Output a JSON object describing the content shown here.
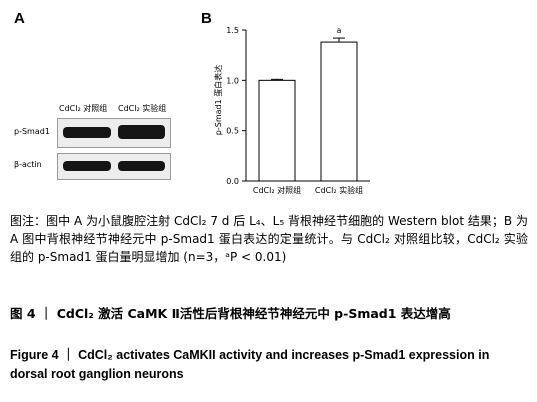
{
  "panelA": {
    "letter": "A",
    "lane_labels": [
      "CdCl₂ 对照组",
      "CdCl₂ 实验组"
    ],
    "row_labels": [
      "p-Smad1",
      "β-actin"
    ]
  },
  "panelB": {
    "letter": "B"
  },
  "chart_data": {
    "type": "bar",
    "categories": [
      "CdCl₂ 对照组",
      "CdCl₂ 实验组"
    ],
    "values": [
      1.0,
      1.38
    ],
    "errors": [
      0.01,
      0.04
    ],
    "annotations": [
      "",
      "a"
    ],
    "ylabel": "p-Smad1 蛋白表达",
    "ylim": [
      0,
      1.5
    ],
    "yticks": [
      "0.0",
      "0.5",
      "1.0",
      "1.5"
    ],
    "bar_color": "#ffffff",
    "grid": false
  },
  "caption": {
    "note": "图注：图中 A 为小鼠腹腔注射 CdCl₂ 7 d 后 L₄、L₅ 背根神经节细胞的 Western blot 结果；B 为 A 图中背根神经节神经元中 p-Smad1 蛋白表达的定量统计。与 CdCl₂ 对照组比较，CdCl₂ 实验组的 p-Smad1 蛋白量明显增加 (n=3，ᵃP < 0.01)",
    "title_cn": "图 4 ｜ CdCl₂ 激活 CaMK Ⅱ活性后背根神经节神经元中 p-Smad1 表达增高",
    "title_en": "Figure 4 ｜ CdCl₂ activates CaMKII activity and increases p-Smad1 expression in dorsal root ganglion neurons"
  }
}
